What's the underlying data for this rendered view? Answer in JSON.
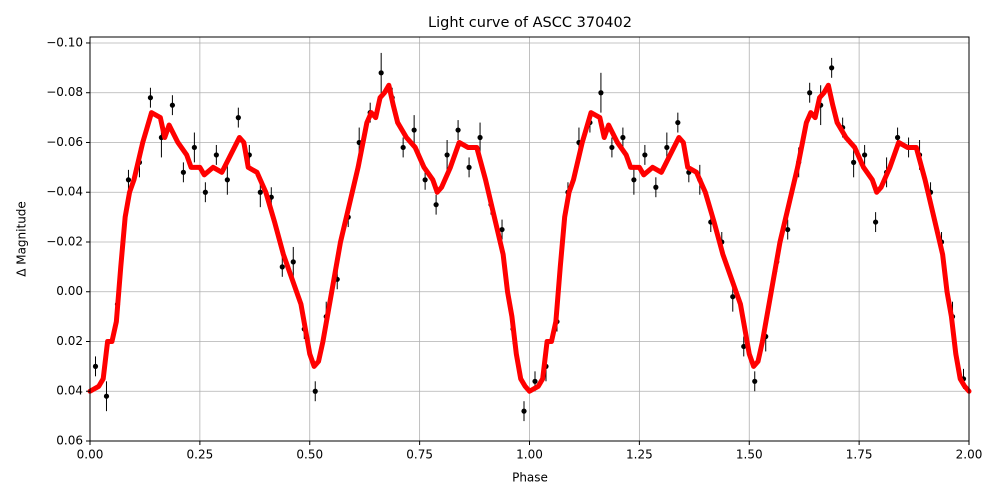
{
  "chart_data": {
    "type": "line",
    "title": "Light curve of ASCC 370402",
    "x_label": "Phase",
    "y_label": "Δ Magnitude",
    "xlim": [
      0,
      2
    ],
    "ylim": [
      0.06,
      -0.1024
    ],
    "xticks": [
      {
        "value": 0,
        "label": "0.00"
      },
      {
        "value": 0.25,
        "label": "0.25"
      },
      {
        "value": 0.5,
        "label": "0.50"
      },
      {
        "value": 0.75,
        "label": "0.75"
      },
      {
        "value": 1,
        "label": "1.00"
      },
      {
        "value": 1.25,
        "label": "1.25"
      },
      {
        "value": 1.5,
        "label": "1.50"
      },
      {
        "value": 1.75,
        "label": "1.75"
      },
      {
        "value": 2,
        "label": "2.00"
      }
    ],
    "yticks": [
      {
        "value": 0.06,
        "label": "0.06"
      },
      {
        "value": 0.04,
        "label": "0.04"
      },
      {
        "value": 0.02,
        "label": "0.02"
      },
      {
        "value": 0,
        "label": "0.00"
      },
      {
        "value": -0.02,
        "label": "−0.02"
      },
      {
        "value": -0.04,
        "label": "−0.04"
      },
      {
        "value": -0.06,
        "label": "−0.06"
      },
      {
        "value": -0.08,
        "label": "−0.08"
      },
      {
        "value": -0.1,
        "label": "−0.10"
      }
    ],
    "grid": true,
    "series": [
      {
        "type": "errorbar",
        "color": "#000000",
        "x": [
          0.0125,
          0.0375,
          0.0625,
          0.0875,
          0.1125,
          0.1375,
          0.1625,
          0.1875,
          0.2125,
          0.2375,
          0.2625,
          0.2875,
          0.3125,
          0.3375,
          0.3625,
          0.3875,
          0.4125,
          0.4375,
          0.4625,
          0.4875,
          0.5125,
          0.5375,
          0.5625,
          0.5875,
          0.6125,
          0.6375,
          0.6625,
          0.6875,
          0.7125,
          0.7375,
          0.7625,
          0.7875,
          0.8125,
          0.8375,
          0.8625,
          0.8875,
          0.9125,
          0.9375,
          0.9625,
          0.9875,
          1.0125,
          1.0375,
          1.0625,
          1.0875,
          1.1125,
          1.1375,
          1.1625,
          1.1875,
          1.2125,
          1.2375,
          1.2625,
          1.2875,
          1.3125,
          1.3375,
          1.3625,
          1.3875,
          1.4125,
          1.4375,
          1.4625,
          1.4875,
          1.5125,
          1.5375,
          1.5625,
          1.5875,
          1.6125,
          1.6375,
          1.6625,
          1.6875,
          1.7125,
          1.7375,
          1.7625,
          1.7875,
          1.8125,
          1.8375,
          1.8625,
          1.8875,
          1.9125,
          1.9375,
          1.9625,
          1.9875
        ],
        "values": [
          0.03,
          0.042,
          0.005,
          -0.045,
          -0.052,
          -0.078,
          -0.062,
          -0.075,
          -0.048,
          -0.058,
          -0.04,
          -0.055,
          -0.045,
          -0.07,
          -0.055,
          -0.04,
          -0.038,
          -0.01,
          -0.012,
          0.015,
          0.04,
          0.01,
          -0.005,
          -0.03,
          -0.06,
          -0.072,
          -0.088,
          -0.078,
          -0.058,
          -0.065,
          -0.045,
          -0.035,
          -0.055,
          -0.065,
          -0.05,
          -0.062,
          -0.035,
          -0.025,
          0.015,
          0.048,
          0.036,
          0.03,
          0.012,
          -0.04,
          -0.06,
          -0.068,
          -0.08,
          -0.058,
          -0.062,
          -0.045,
          -0.055,
          -0.042,
          -0.058,
          -0.068,
          -0.048,
          -0.045,
          -0.028,
          -0.02,
          0.002,
          0.022,
          0.036,
          0.018,
          -0.012,
          -0.025,
          -0.052,
          -0.08,
          -0.075,
          -0.09,
          -0.066,
          -0.052,
          -0.055,
          -0.028,
          -0.048,
          -0.062,
          -0.058,
          -0.055,
          -0.04,
          -0.02,
          0.01,
          0.035
        ],
        "errors": [
          0.004,
          0.006,
          0.004,
          0.004,
          0.006,
          0.004,
          0.008,
          0.004,
          0.004,
          0.006,
          0.004,
          0.004,
          0.006,
          0.004,
          0.004,
          0.006,
          0.004,
          0.004,
          0.006,
          0.004,
          0.004,
          0.006,
          0.004,
          0.004,
          0.006,
          0.004,
          0.008,
          0.004,
          0.004,
          0.006,
          0.004,
          0.004,
          0.006,
          0.004,
          0.004,
          0.006,
          0.004,
          0.004,
          0.006,
          0.004,
          0.004,
          0.006,
          0.004,
          0.004,
          0.006,
          0.004,
          0.008,
          0.004,
          0.004,
          0.006,
          0.004,
          0.004,
          0.006,
          0.004,
          0.004,
          0.006,
          0.004,
          0.004,
          0.006,
          0.004,
          0.004,
          0.006,
          0.004,
          0.004,
          0.006,
          0.004,
          0.008,
          0.004,
          0.004,
          0.006,
          0.004,
          0.004,
          0.006,
          0.004,
          0.004,
          0.006,
          0.004,
          0.004,
          0.006,
          0.004
        ]
      },
      {
        "type": "line",
        "color": "#ff0000",
        "x": [
          0.0,
          0.02,
          0.03,
          0.04,
          0.05,
          0.06,
          0.07,
          0.08,
          0.09,
          0.1,
          0.12,
          0.14,
          0.16,
          0.17,
          0.18,
          0.2,
          0.22,
          0.23,
          0.25,
          0.26,
          0.28,
          0.3,
          0.32,
          0.34,
          0.35,
          0.36,
          0.38,
          0.4,
          0.42,
          0.44,
          0.46,
          0.48,
          0.49,
          0.5,
          0.51,
          0.52,
          0.53,
          0.55,
          0.57,
          0.59,
          0.61,
          0.63,
          0.64,
          0.65,
          0.66,
          0.67,
          0.68,
          0.69,
          0.7,
          0.72,
          0.74,
          0.76,
          0.78,
          0.79,
          0.8,
          0.82,
          0.84,
          0.86,
          0.88,
          0.9,
          0.92,
          0.94,
          0.95,
          0.96,
          0.97,
          0.98,
          0.99,
          1.0,
          1.02,
          1.03,
          1.04,
          1.05,
          1.06,
          1.07,
          1.08,
          1.09,
          1.1,
          1.12,
          1.14,
          1.16,
          1.17,
          1.18,
          1.2,
          1.22,
          1.23,
          1.25,
          1.26,
          1.28,
          1.3,
          1.32,
          1.34,
          1.35,
          1.36,
          1.38,
          1.4,
          1.42,
          1.44,
          1.46,
          1.48,
          1.49,
          1.5,
          1.51,
          1.52,
          1.53,
          1.55,
          1.57,
          1.59,
          1.61,
          1.63,
          1.64,
          1.65,
          1.66,
          1.67,
          1.68,
          1.69,
          1.7,
          1.72,
          1.74,
          1.76,
          1.78,
          1.79,
          1.8,
          1.82,
          1.84,
          1.86,
          1.88,
          1.9,
          1.92,
          1.94,
          1.95,
          1.96,
          1.97,
          1.98,
          1.99,
          2.0
        ],
        "values": [
          0.04,
          0.038,
          0.035,
          0.02,
          0.02,
          0.012,
          -0.01,
          -0.03,
          -0.04,
          -0.045,
          -0.06,
          -0.072,
          -0.07,
          -0.062,
          -0.067,
          -0.06,
          -0.055,
          -0.05,
          -0.05,
          -0.047,
          -0.05,
          -0.048,
          -0.055,
          -0.062,
          -0.06,
          -0.05,
          -0.048,
          -0.04,
          -0.028,
          -0.015,
          -0.005,
          0.005,
          0.015,
          0.025,
          0.03,
          0.028,
          0.02,
          0.0,
          -0.02,
          -0.035,
          -0.05,
          -0.068,
          -0.072,
          -0.07,
          -0.078,
          -0.08,
          -0.083,
          -0.075,
          -0.068,
          -0.062,
          -0.058,
          -0.05,
          -0.045,
          -0.04,
          -0.042,
          -0.05,
          -0.06,
          -0.058,
          -0.058,
          -0.045,
          -0.03,
          -0.015,
          0.0,
          0.01,
          0.025,
          0.035,
          0.038,
          0.04,
          0.038,
          0.035,
          0.02,
          0.02,
          0.012,
          -0.01,
          -0.03,
          -0.04,
          -0.045,
          -0.06,
          -0.072,
          -0.07,
          -0.062,
          -0.067,
          -0.06,
          -0.055,
          -0.05,
          -0.05,
          -0.047,
          -0.05,
          -0.048,
          -0.055,
          -0.062,
          -0.06,
          -0.05,
          -0.048,
          -0.04,
          -0.028,
          -0.015,
          -0.005,
          0.005,
          0.015,
          0.025,
          0.03,
          0.028,
          0.02,
          0.0,
          -0.02,
          -0.035,
          -0.05,
          -0.068,
          -0.072,
          -0.07,
          -0.078,
          -0.08,
          -0.083,
          -0.075,
          -0.068,
          -0.062,
          -0.058,
          -0.05,
          -0.045,
          -0.04,
          -0.042,
          -0.05,
          -0.06,
          -0.058,
          -0.058,
          -0.045,
          -0.03,
          -0.015,
          0.0,
          0.01,
          0.025,
          0.035,
          0.038,
          0.04
        ]
      }
    ]
  }
}
